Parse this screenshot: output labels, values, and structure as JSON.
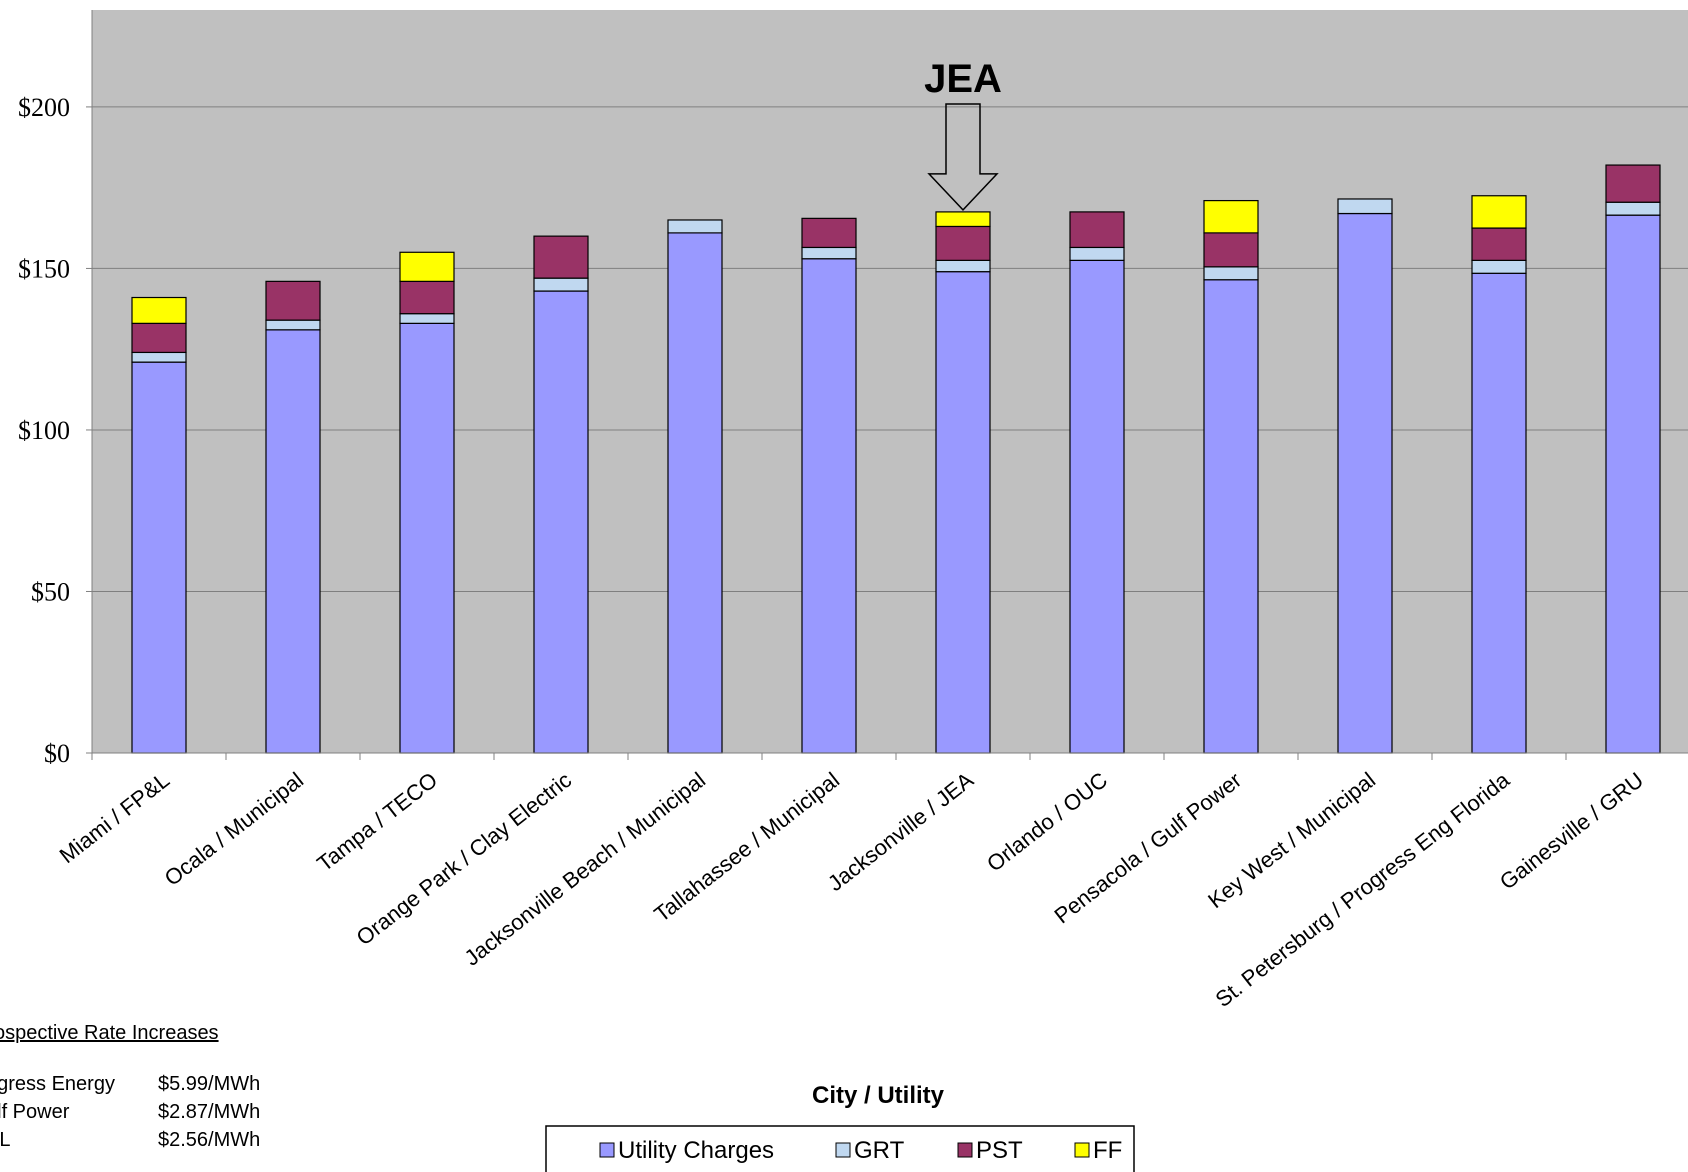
{
  "chart_data": {
    "type": "bar",
    "stacked": true,
    "xlabel": "City / Utility",
    "ylabel": "",
    "ylim": [
      0,
      230
    ],
    "y_ticks": [
      0,
      50,
      100,
      150,
      200
    ],
    "y_tick_labels": [
      "$0",
      "$50",
      "$100",
      "$150",
      "$200"
    ],
    "grid": true,
    "legend_position": "bottom",
    "categories": [
      "Miami / FP&L",
      "Ocala / Municipal",
      "Tampa / TECO",
      "Orange Park / Clay Electric",
      "Jacksonville Beach / Municipal",
      "Tallahassee / Municipal",
      "Jacksonville / JEA",
      "Orlando / OUC",
      "Pensacola / Gulf Power",
      "Key West / Municipal",
      "St. Petersburg / Progress Eng Florida",
      "Gainesville / GRU"
    ],
    "series": [
      {
        "name": "Utility Charges",
        "color": "#9999ff",
        "values": [
          121,
          131,
          133,
          143,
          161,
          153,
          149,
          152.5,
          146.5,
          167,
          148.5,
          166.5
        ]
      },
      {
        "name": "GRT",
        "color": "#c0d8f0",
        "values": [
          3,
          3,
          3,
          4,
          4,
          3.5,
          3.5,
          4,
          4,
          4.5,
          4,
          4
        ]
      },
      {
        "name": "PST",
        "color": "#993366",
        "values": [
          9,
          12,
          10,
          13,
          0,
          9,
          10.5,
          11,
          10.5,
          0,
          10,
          11.5
        ]
      },
      {
        "name": "FF",
        "color": "#ffff00",
        "values": [
          8,
          0,
          9,
          0,
          0,
          0,
          4.5,
          0,
          10,
          0,
          10,
          0
        ]
      }
    ],
    "annotation": {
      "text": "JEA",
      "category_index": 6
    },
    "plot_background": "#c0c0c0"
  },
  "notes": {
    "title": "ospective Rate Increases",
    "rows": [
      {
        "name": "ogress Energy",
        "value": "$5.99/MWh"
      },
      {
        "name": "ulf Power",
        "value": "$2.87/MWh"
      },
      {
        "name": "&L",
        "value": "$2.56/MWh"
      }
    ]
  }
}
